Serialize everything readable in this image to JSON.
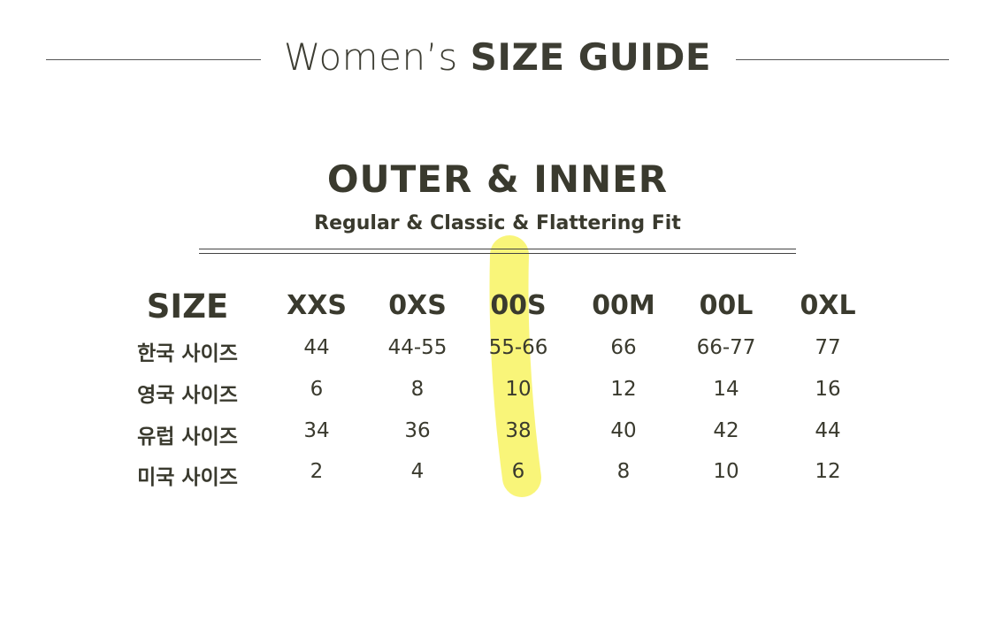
{
  "title": {
    "light": "Women’s",
    "bold": "SIZE GUIDE"
  },
  "section": {
    "title": "OUTER & INNER",
    "subtitle": "Regular & Classic & Flattering Fit"
  },
  "table": {
    "corner": "SIZE",
    "columns": [
      "XXS",
      "0XS",
      "00S",
      "00M",
      "00L",
      "0XL"
    ],
    "rows": [
      {
        "label": "한국 사이즈",
        "values": [
          "44",
          "44-55",
          "55-66",
          "66",
          "66-77",
          "77"
        ]
      },
      {
        "label": "영국 사이즈",
        "values": [
          "6",
          "8",
          "10",
          "12",
          "14",
          "16"
        ]
      },
      {
        "label": "유럽 사이즈",
        "values": [
          "34",
          "36",
          "38",
          "40",
          "42",
          "44"
        ]
      },
      {
        "label": "미국 사이즈",
        "values": [
          "2",
          "4",
          "6",
          "8",
          "10",
          "12"
        ]
      }
    ],
    "highlighted_column": "00S"
  },
  "colors": {
    "text": "#3a3a2e",
    "highlight": "#f8f46a"
  }
}
